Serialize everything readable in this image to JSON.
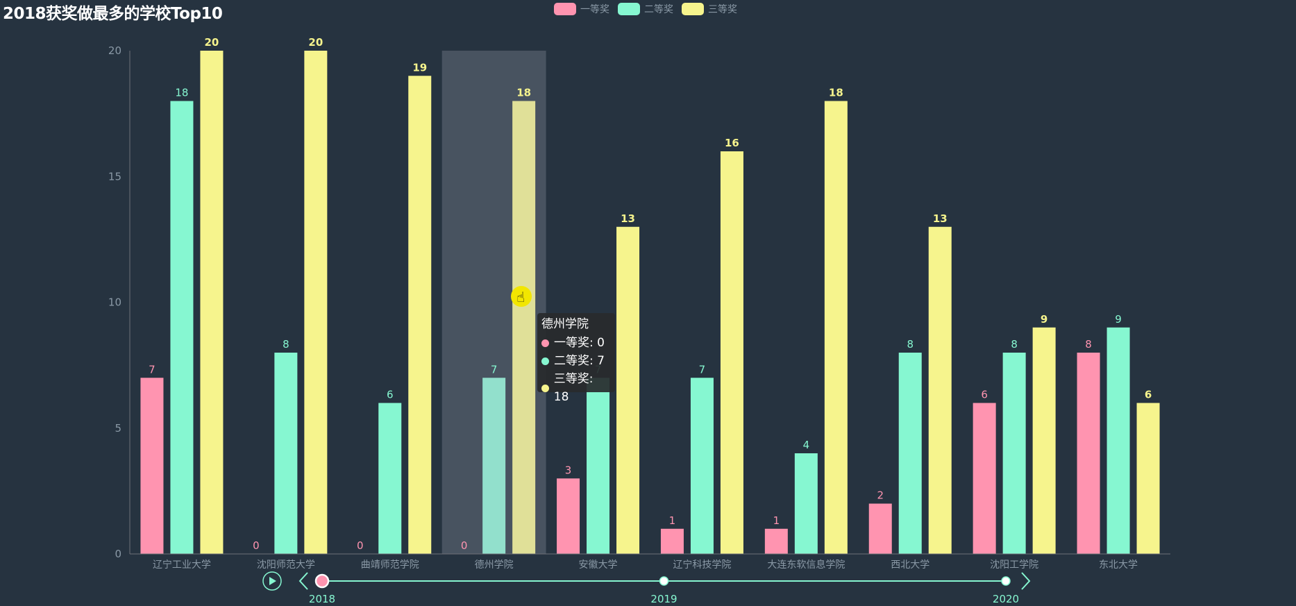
{
  "title": "2018获奖做最多的学校Top10",
  "legend": [
    {
      "name": "一等奖",
      "color": "#ff94b0"
    },
    {
      "name": "二等奖",
      "color": "#86f7d1"
    },
    {
      "name": "三等奖",
      "color": "#f6f48d"
    }
  ],
  "chart_data": {
    "type": "bar",
    "title": "2018获奖做最多的学校Top10",
    "categories": [
      "辽宁工业大学",
      "沈阳师范大学",
      "曲靖师范学院",
      "德州学院",
      "安徽大学",
      "辽宁科技学院",
      "大连东软信息学院",
      "西北大学",
      "沈阳工学院",
      "东北大学"
    ],
    "series": [
      {
        "name": "一等奖",
        "color": "#ff94b0",
        "values": [
          7,
          0,
          0,
          0,
          3,
          1,
          1,
          2,
          6,
          8
        ]
      },
      {
        "name": "二等奖",
        "color": "#86f7d1",
        "values": [
          18,
          8,
          6,
          7,
          7,
          7,
          4,
          8,
          8,
          9
        ]
      },
      {
        "name": "三等奖",
        "color": "#f6f48d",
        "values": [
          20,
          20,
          19,
          18,
          13,
          16,
          18,
          13,
          9,
          6
        ]
      }
    ],
    "ylim": [
      0,
      20
    ],
    "yticks": [
      0,
      5,
      10,
      15,
      20
    ],
    "legend_position": "top-center",
    "highlighted_category": "德州学院"
  },
  "tooltip": {
    "title": "德州学院",
    "rows": [
      {
        "label": "一等奖: 0",
        "color": "#ff94b0"
      },
      {
        "label": "二等奖: 7",
        "color": "#86f7d1"
      },
      {
        "label": "三等奖: 18",
        "color": "#f6f48d"
      }
    ]
  },
  "timeline": {
    "items": [
      "2018",
      "2019",
      "2020"
    ],
    "current_index": 0,
    "color": "#86f7d1"
  }
}
